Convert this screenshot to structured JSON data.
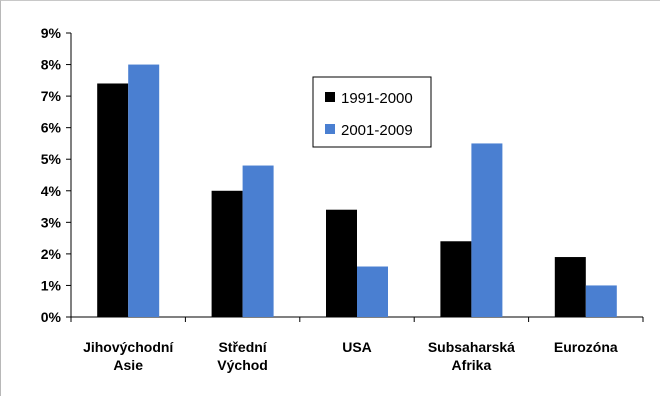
{
  "chart_data": {
    "type": "bar",
    "categories": [
      [
        "Jihovýchodní",
        "Asie"
      ],
      [
        "Střední",
        "Východ"
      ],
      [
        "USA"
      ],
      [
        "Subsaharská",
        "Afrika"
      ],
      [
        "Eurozóna"
      ]
    ],
    "series": [
      {
        "name": "1991-2000",
        "color": "#000000",
        "values": [
          7.4,
          4.0,
          3.4,
          2.4,
          1.9
        ]
      },
      {
        "name": "2001-2009",
        "color": "#4a7fd1",
        "values": [
          8.0,
          4.8,
          1.6,
          5.5,
          1.0
        ]
      }
    ],
    "y_ticks": [
      "0%",
      "1%",
      "2%",
      "3%",
      "4%",
      "5%",
      "6%",
      "7%",
      "8%",
      "9%"
    ],
    "ylim": [
      0,
      9
    ],
    "unit": "%",
    "grid": false,
    "legend_position": "top-center"
  }
}
